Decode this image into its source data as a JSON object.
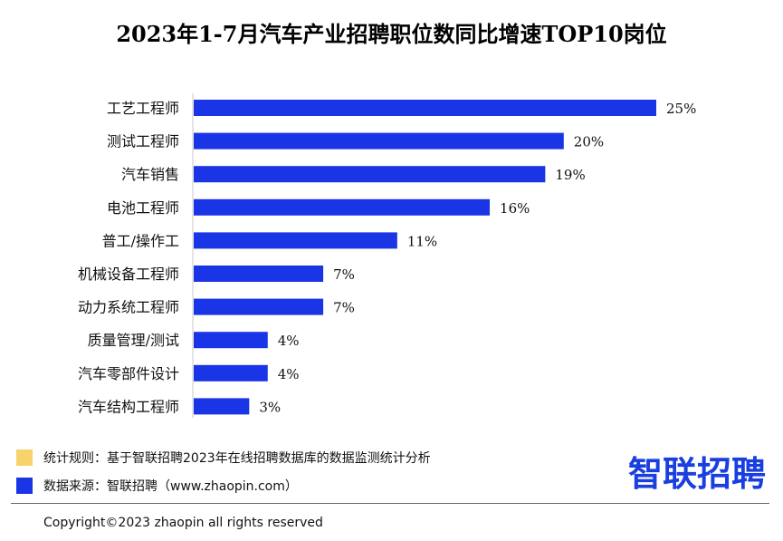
{
  "chart_data": {
    "type": "bar",
    "orientation": "horizontal",
    "title": "2023年1-7月汽车产业招聘职位数同比增速TOP10岗位",
    "categories": [
      "工艺工程师",
      "测试工程师",
      "汽车销售",
      "电池工程师",
      "普工/操作工",
      "机械设备工程师",
      "动力系统工程师",
      "质量管理/测试",
      "汽车零部件设计",
      "汽车结构工程师"
    ],
    "values": [
      25,
      20,
      19,
      16,
      11,
      7,
      7,
      4,
      4,
      3
    ],
    "value_labels": [
      "25%",
      "20%",
      "19%",
      "16%",
      "11%",
      "7%",
      "7%",
      "4%",
      "4%",
      "3%"
    ],
    "xlim": [
      0,
      25
    ],
    "grid": false,
    "legend": "none",
    "bar_color": "#1a35e6",
    "axis_color": "#c9c9c9"
  },
  "footnotes": [
    {
      "text": "统计规则：基于智联招聘2023年在线招聘数据库的数据监测统计分析",
      "color": "#f7d36b"
    },
    {
      "text": "数据来源：智联招聘（www.zhaopin.com）",
      "color": "#1a35e6"
    }
  ],
  "logo_text": "智联招聘",
  "copyright": "Copyright©2023 zhaopin all rights reserved"
}
